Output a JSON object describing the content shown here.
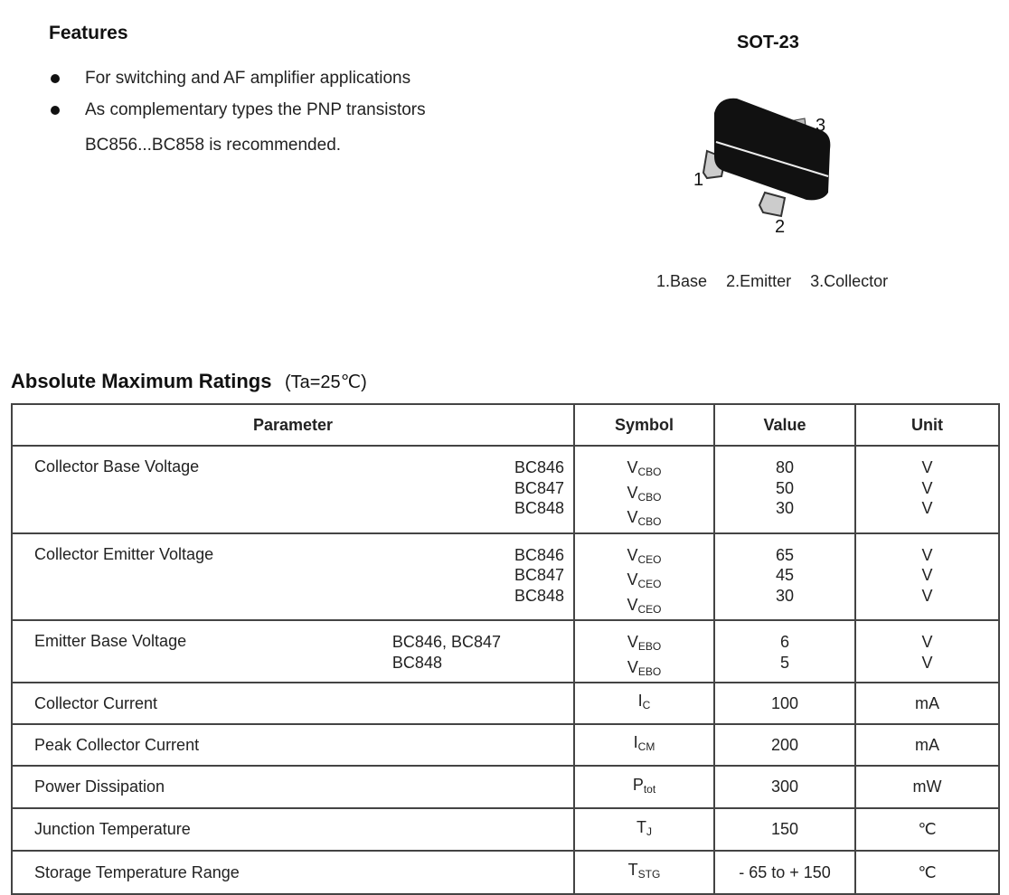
{
  "features": {
    "title": "Features",
    "items": [
      "For switching and AF amplifier applications",
      "As complementary types the PNP transistors"
    ],
    "continuation": "BC856...BC858 is recommended."
  },
  "package": {
    "name": "SOT-23",
    "pin_numbers": [
      "1",
      "2",
      "3"
    ],
    "pin_legend": [
      "1.Base",
      "2.Emitter",
      "3.Collector"
    ]
  },
  "ratings": {
    "title": "Absolute Maximum Ratings",
    "condition": "(Ta=25℃)",
    "headers": [
      "Parameter",
      "Symbol",
      "Value",
      "Unit"
    ],
    "rows": [
      {
        "parameter": "Collector Base Voltage",
        "models": [
          "BC846",
          "BC847",
          "BC848"
        ],
        "symbols": [
          [
            "V",
            "CBO"
          ],
          [
            "V",
            "CBO"
          ],
          [
            "V",
            "CBO"
          ]
        ],
        "values": [
          "80",
          "50",
          "30"
        ],
        "units": [
          "V",
          "V",
          "V"
        ]
      },
      {
        "parameter": "Collector Emitter Voltage",
        "models": [
          "BC846",
          "BC847",
          "BC848"
        ],
        "symbols": [
          [
            "V",
            "CEO"
          ],
          [
            "V",
            "CEO"
          ],
          [
            "V",
            "CEO"
          ]
        ],
        "values": [
          "65",
          "45",
          "30"
        ],
        "units": [
          "V",
          "V",
          "V"
        ]
      },
      {
        "parameter": "Emitter Base Voltage",
        "models": [
          "BC846, BC847",
          "BC848"
        ],
        "symbols": [
          [
            "V",
            "EBO"
          ],
          [
            "V",
            "EBO"
          ]
        ],
        "values": [
          "6",
          "5"
        ],
        "units": [
          "V",
          "V"
        ]
      },
      {
        "parameter": "Collector Current",
        "models": [],
        "symbols": [
          [
            "I",
            "C"
          ]
        ],
        "values": [
          "100"
        ],
        "units": [
          "mA"
        ]
      },
      {
        "parameter": "Peak Collector Current",
        "models": [],
        "symbols": [
          [
            "I",
            "CM"
          ]
        ],
        "values": [
          "200"
        ],
        "units": [
          "mA"
        ]
      },
      {
        "parameter": "Power Dissipation",
        "models": [],
        "symbols": [
          [
            "P",
            "tot"
          ]
        ],
        "values": [
          "300"
        ],
        "units": [
          "mW"
        ]
      },
      {
        "parameter": "Junction Temperature",
        "models": [],
        "symbols": [
          [
            "T",
            "J"
          ]
        ],
        "values": [
          "150"
        ],
        "units": [
          "℃"
        ]
      },
      {
        "parameter": "Storage Temperature Range",
        "models": [],
        "symbols": [
          [
            "T",
            "STG"
          ]
        ],
        "values": [
          "- 65 to + 150"
        ],
        "units": [
          "℃"
        ]
      }
    ]
  }
}
